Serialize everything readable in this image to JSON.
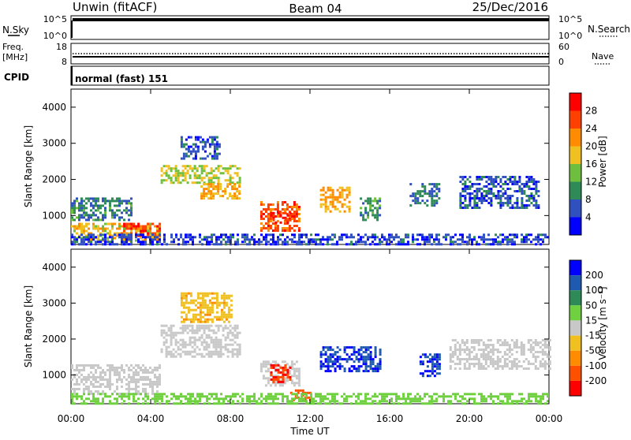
{
  "header": {
    "station": "Unwin (fitACF)",
    "beam": "Beam 04",
    "date": "25/Dec/2016"
  },
  "top_panels": {
    "nsky_label": "N.Sky",
    "nsky_ticks": [
      "10^5",
      "10^0"
    ],
    "nsearch_label": "N.Search",
    "nsearch_ticks": [
      "10^5",
      "10^0"
    ],
    "freq_label_1": "Freq.",
    "freq_label_2": "[MHz]",
    "freq_ticks": [
      "18",
      "8"
    ],
    "nave_label": "Nave",
    "nave_ticks": [
      "60",
      "0"
    ],
    "cpid_label": "CPID",
    "cpid_value": "normal (fast) 151"
  },
  "colors": {
    "power_scale": [
      "#0000ff",
      "#3050c0",
      "#2e8b57",
      "#6fbf3f",
      "#f0c020",
      "#ff8c00",
      "#ff4000",
      "#ff0000"
    ],
    "velocity_scale": [
      "#0000ff",
      "#1e5ab0",
      "#2e8b57",
      "#6fd040",
      "#c8c8c8",
      "#f0c020",
      "#ff8c00",
      "#ff5000",
      "#ff0000"
    ]
  },
  "chart_data": [
    {
      "type": "heatmap",
      "name": "power",
      "xlabel": "Time UT",
      "ylabel": "Slant Range [km]",
      "x_ticks": [
        "00:00",
        "04:00",
        "08:00",
        "12:00",
        "16:00",
        "20:00",
        "00:00"
      ],
      "x_range_hours": [
        0,
        24
      ],
      "y_ticks": [
        1000,
        2000,
        3000,
        4000
      ],
      "ylim": [
        200,
        4500
      ],
      "colorbar_label": "Power [dB]",
      "colorbar_ticks": [
        "4",
        "8",
        "12",
        "16",
        "20",
        "24",
        "28"
      ],
      "colorbar_range": [
        0,
        32
      ],
      "regions": [
        {
          "t0": 0.0,
          "t1": 4.5,
          "r0": 300,
          "r1": 800,
          "value": 18
        },
        {
          "t0": 2.5,
          "t1": 4.5,
          "r0": 400,
          "r1": 800,
          "value": 26
        },
        {
          "t0": 0.0,
          "t1": 3.0,
          "r0": 900,
          "r1": 1500,
          "value": 9
        },
        {
          "t0": 4.5,
          "t1": 8.5,
          "r0": 1900,
          "r1": 2400,
          "value": 16
        },
        {
          "t0": 6.5,
          "t1": 8.5,
          "r0": 1500,
          "r1": 1900,
          "value": 20
        },
        {
          "t0": 5.5,
          "t1": 7.5,
          "r0": 2600,
          "r1": 3200,
          "value": 6
        },
        {
          "t0": 9.5,
          "t1": 11.5,
          "r0": 600,
          "r1": 1400,
          "value": 25
        },
        {
          "t0": 10.0,
          "t1": 11.0,
          "r0": 800,
          "r1": 1100,
          "value": 29
        },
        {
          "t0": 12.5,
          "t1": 14.0,
          "r0": 1100,
          "r1": 1800,
          "value": 20
        },
        {
          "t0": 14.5,
          "t1": 15.5,
          "r0": 900,
          "r1": 1500,
          "value": 10
        },
        {
          "t0": 17.0,
          "t1": 18.5,
          "r0": 1300,
          "r1": 1900,
          "value": 8
        },
        {
          "t0": 19.5,
          "t1": 23.5,
          "r0": 1200,
          "r1": 2100,
          "value": 6
        },
        {
          "t0": 0.0,
          "t1": 24.0,
          "r0": 200,
          "r1": 500,
          "value": 5
        }
      ]
    },
    {
      "type": "heatmap",
      "name": "velocity",
      "xlabel": "Time UT",
      "ylabel": "Slant Range [km]",
      "x_ticks": [
        "00:00",
        "04:00",
        "08:00",
        "12:00",
        "16:00",
        "20:00",
        "00:00"
      ],
      "x_range_hours": [
        0,
        24
      ],
      "y_ticks": [
        1000,
        2000,
        3000,
        4000
      ],
      "ylim": [
        200,
        4500
      ],
      "colorbar_label": "Velocity [m s⁻¹]",
      "colorbar_ticks": [
        "200",
        "100",
        "50",
        "15",
        "-15",
        "-50",
        "-100",
        "-200"
      ],
      "regions": [
        {
          "t0": 0.0,
          "t1": 4.5,
          "r0": 500,
          "r1": 1300,
          "value": 0
        },
        {
          "t0": 4.5,
          "t1": 8.5,
          "r0": 1500,
          "r1": 2400,
          "value": 0
        },
        {
          "t0": 5.5,
          "t1": 8.0,
          "r0": 2500,
          "r1": 3300,
          "value": -40
        },
        {
          "t0": 9.5,
          "t1": 11.5,
          "r0": 700,
          "r1": 1400,
          "value": 0
        },
        {
          "t0": 10.0,
          "t1": 11.0,
          "r0": 800,
          "r1": 1300,
          "value": -200
        },
        {
          "t0": 11.0,
          "t1": 12.0,
          "r0": 300,
          "r1": 600,
          "value": -150
        },
        {
          "t0": 12.5,
          "t1": 15.5,
          "r0": 1100,
          "r1": 1800,
          "value": 200
        },
        {
          "t0": 17.5,
          "t1": 18.5,
          "r0": 1000,
          "r1": 1600,
          "value": 200
        },
        {
          "t0": 19.0,
          "t1": 24.0,
          "r0": 1200,
          "r1": 2000,
          "value": 0
        },
        {
          "t0": 0.0,
          "t1": 24.0,
          "r0": 200,
          "r1": 500,
          "value": 30
        }
      ]
    }
  ]
}
